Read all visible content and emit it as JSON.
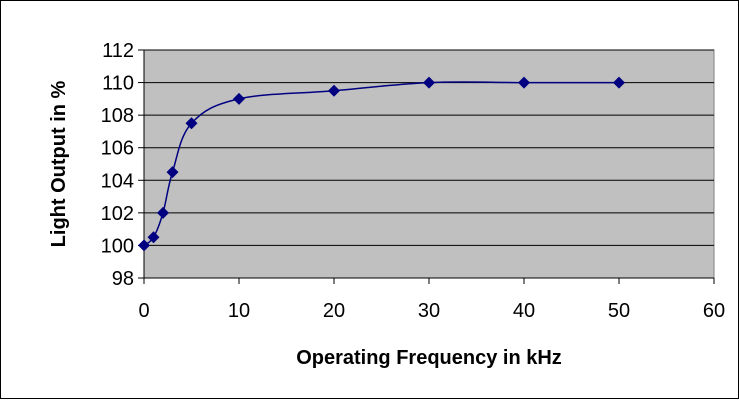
{
  "chart_data": {
    "type": "line",
    "title": "",
    "xlabel": "Operating Frequency in kHz",
    "ylabel": "Light Output in %",
    "xlim": [
      0,
      60
    ],
    "ylim": [
      98,
      112
    ],
    "x_ticks": [
      "0",
      "10",
      "20",
      "30",
      "40",
      "50",
      "60"
    ],
    "y_ticks": [
      "98",
      "100",
      "102",
      "104",
      "106",
      "108",
      "110",
      "112"
    ],
    "grid": "horizontal",
    "smoothed": true,
    "series": [
      {
        "name": "",
        "x": [
          0,
          1,
          2,
          3,
          5,
          10,
          20,
          30,
          40,
          50
        ],
        "y": [
          100,
          100.5,
          102,
          104.5,
          107.5,
          109,
          109.5,
          110,
          110,
          110
        ]
      }
    ],
    "colors": {
      "plot_area": "#c0c0c0",
      "line": "#000080",
      "marker": "#000080",
      "grid": "#000000"
    }
  }
}
